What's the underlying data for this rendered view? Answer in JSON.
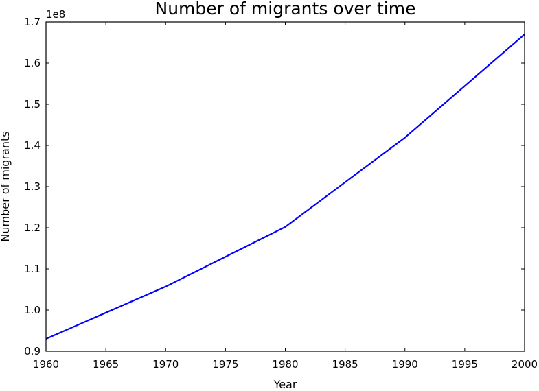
{
  "chart_data": {
    "type": "line",
    "title": "Number of migrants over time",
    "xlabel": "Year",
    "ylabel": "Number of migrants",
    "y_offset_label": "1e8",
    "xlim": [
      1960,
      2000
    ],
    "ylim": [
      0.9,
      1.7
    ],
    "x_ticks": [
      1960,
      1965,
      1970,
      1975,
      1980,
      1985,
      1990,
      1995,
      2000
    ],
    "x_tick_labels": [
      "1960",
      "1965",
      "1970",
      "1975",
      "1980",
      "1985",
      "1990",
      "1995",
      "2000"
    ],
    "y_ticks": [
      0.9,
      1.0,
      1.1,
      1.2,
      1.3,
      1.4,
      1.5,
      1.6,
      1.7
    ],
    "y_tick_labels": [
      "0.9",
      "1.0",
      "1.1",
      "1.2",
      "1.3",
      "1.4",
      "1.5",
      "1.6",
      "1.7"
    ],
    "grid": false,
    "series": [
      {
        "color": "#0000ff",
        "x": [
          1960,
          1970,
          1980,
          1990,
          2000
        ],
        "y": [
          0.93,
          1.057,
          1.202,
          1.419,
          1.67
        ]
      }
    ]
  }
}
